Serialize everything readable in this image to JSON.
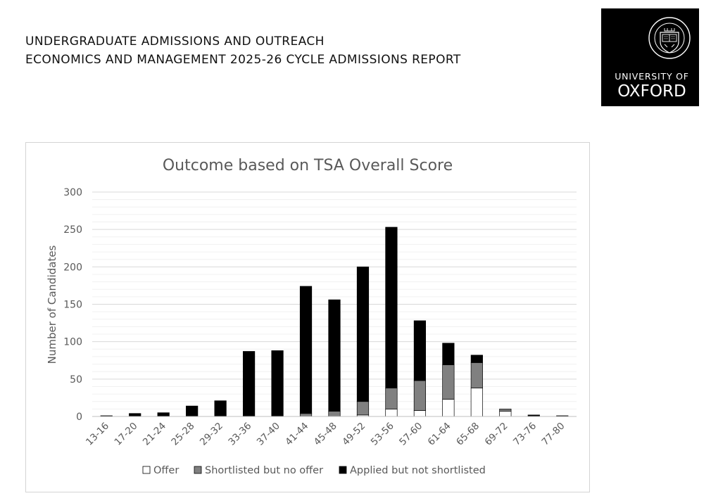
{
  "header": {
    "line1": "UNDERGRADUATE ADMISSIONS AND OUTREACH",
    "line2": "ECONOMICS AND MANAGEMENT 2025-26 CYCLE ADMISSIONS REPORT"
  },
  "logo": {
    "line1": "UNIVERSITY OF",
    "line2": "OXFORD",
    "seal_text": "UNIVERSITY OF OXFORD",
    "icon": "oxford-crest-icon"
  },
  "chart_data": {
    "type": "bar",
    "stacked": true,
    "title": "Outcome based on TSA Overall Score",
    "xlabel": "",
    "ylabel": "Number of Candidates",
    "ylim": [
      0,
      300
    ],
    "yticks": [
      0,
      50,
      100,
      150,
      200,
      250,
      300
    ],
    "grid": true,
    "legend_position": "bottom",
    "categories": [
      "13-16",
      "17-20",
      "21-24",
      "25-28",
      "29-32",
      "33-36",
      "37-40",
      "41-44",
      "45-48",
      "49-52",
      "53-56",
      "57-60",
      "61-64",
      "65-68",
      "69-72",
      "73-76",
      "77-80"
    ],
    "series": [
      {
        "name": "Offer",
        "color": "#ffffff",
        "values": [
          0,
          0,
          0,
          0,
          0,
          0,
          0,
          0,
          0,
          2,
          10,
          8,
          23,
          38,
          7,
          0,
          0
        ]
      },
      {
        "name": "Shortlisted but no offer",
        "color": "#808080",
        "values": [
          0,
          0,
          0,
          0,
          0,
          0,
          0,
          4,
          7,
          18,
          28,
          40,
          46,
          34,
          3,
          0,
          0
        ]
      },
      {
        "name": "Applied but not shortlisted",
        "color": "#000000",
        "values": [
          1,
          4,
          5,
          14,
          21,
          87,
          88,
          170,
          149,
          180,
          215,
          80,
          29,
          10,
          0,
          2,
          1
        ]
      }
    ]
  }
}
